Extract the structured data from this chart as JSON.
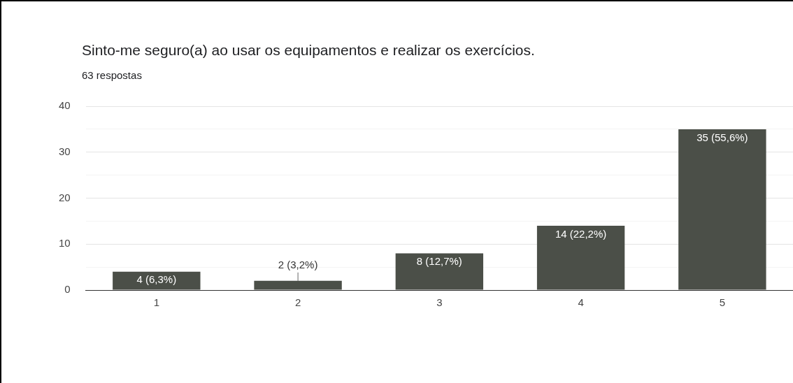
{
  "chart_data": {
    "type": "bar",
    "title": "Sinto-me seguro(a) ao usar os equipamentos e realizar os exercícios.",
    "subtitle": "63 respostas",
    "categories": [
      "1",
      "2",
      "3",
      "4",
      "5"
    ],
    "values": [
      4,
      2,
      8,
      14,
      35
    ],
    "color": "#4b4f48",
    "value_labels": [
      "4 (6,3%)",
      "2 (3,2%)",
      "8 (12,7%)",
      "14 (22,2%)",
      "35 (55,6%)"
    ],
    "ylim": [
      0,
      40
    ],
    "yticks": [
      0,
      {
        "value": 5,
        "label": null
      },
      10,
      {
        "value": 15,
        "label": null
      },
      20,
      {
        "value": 25,
        "label": null
      },
      30,
      {
        "value": 35,
        "label": null
      },
      40
    ],
    "grid": "y",
    "legend": false
  }
}
